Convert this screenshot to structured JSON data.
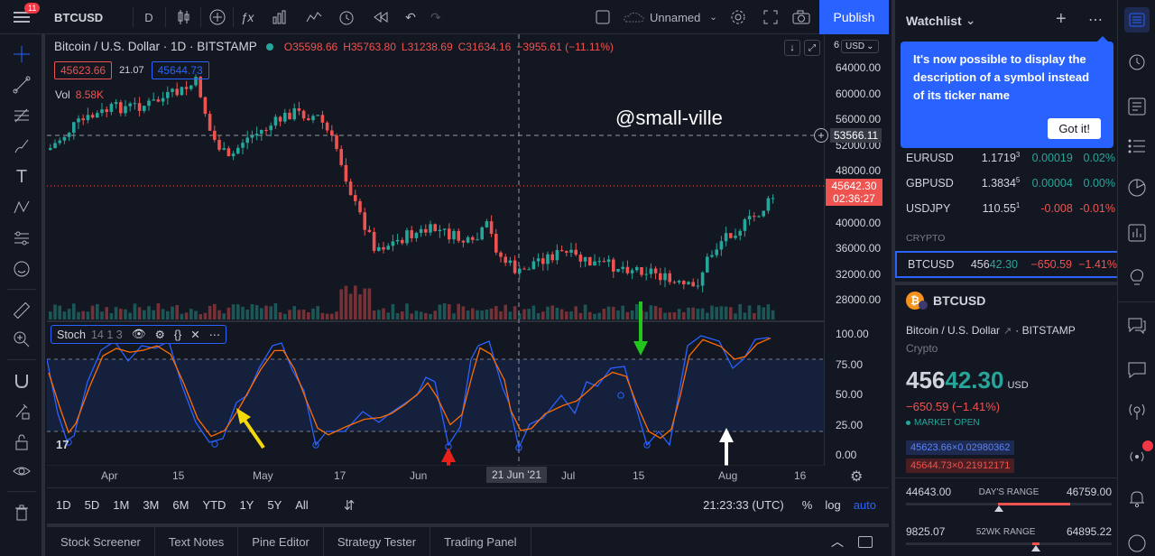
{
  "topbar": {
    "notif_count": "11",
    "symbol": "BTCUSD",
    "interval": "D",
    "layout_name": "Unnamed",
    "publish": "Publish"
  },
  "legend": {
    "title": "Bitcoin / U.S. Dollar · 1D · BITSTAMP",
    "open": "O35598.66",
    "high": "H35763.80",
    "low": "L31238.69",
    "close": "C31634.16",
    "change": "−3955.61 (−11.11%)",
    "bid": "45623.66",
    "spread": "21.07",
    "ask": "45644.73",
    "vol_label": "Vol",
    "vol_value": "8.58K",
    "watermark": "@small-ville",
    "currency": "USD"
  },
  "indicator": {
    "name": "Stoch",
    "params": "14 1 3"
  },
  "price_axis": {
    "ticks": [
      "64000.00",
      "60000.00",
      "56000.00",
      "52000.00",
      "48000.00",
      "44000.00",
      "40000.00",
      "36000.00",
      "32000.00",
      "28000.00"
    ],
    "top_label": "6",
    "crosshair_price": "53566.11",
    "last_price": "45642.30",
    "countdown": "02:36:27",
    "stoch_ticks": [
      "100.00",
      "75.00",
      "50.00",
      "25.00",
      "0.00"
    ]
  },
  "time_axis": {
    "labels": [
      "Apr",
      "15",
      "May",
      "17",
      "Jun",
      "Jul",
      "15",
      "Aug",
      "16"
    ],
    "crosshair_date": "21 Jun '21"
  },
  "ranges": {
    "items": [
      "1D",
      "5D",
      "1M",
      "3M",
      "6M",
      "YTD",
      "1Y",
      "5Y",
      "All"
    ],
    "clock": "21:23:33 (UTC)",
    "pct": "%",
    "log": "log",
    "auto": "auto"
  },
  "bottom_tabs": [
    "Stock Screener",
    "Text Notes",
    "Pine Editor",
    "Strategy Tester",
    "Trading Panel"
  ],
  "watchlist": {
    "title": "Watchlist",
    "tooltip": "It's now possible to display the description of a symbol instead of its ticker name",
    "got_it": "Got it!",
    "rows": [
      {
        "sym": "EURUSD",
        "last": "1.1719",
        "sup": "3",
        "chg": "0.00019",
        "pct": "0.02%",
        "color": "#26a69a"
      },
      {
        "sym": "GBPUSD",
        "last": "1.3834",
        "sup": "5",
        "chg": "0.00004",
        "pct": "0.00%",
        "color": "#26a69a"
      },
      {
        "sym": "USDJPY",
        "last": "110.55",
        "sup": "1",
        "chg": "-0.008",
        "pct": "-0.01%",
        "color": "#ef5350"
      }
    ],
    "section": "CRYPTO",
    "crypto_row": {
      "sym": "BTCUSD",
      "last_a": "456",
      "last_b": "42.30",
      "chg": "−650.59",
      "pct": "−1.41%"
    },
    "detail": {
      "symbol": "BTCUSD",
      "name": "Bitcoin / U.S. Dollar",
      "exchange": "· BITSTAMP",
      "type": "Crypto",
      "price_big": "456",
      "price_rest": "42.30",
      "currency": "USD",
      "change": "−650.59 (−1.41%)",
      "market": "MARKET OPEN",
      "bid": "45623.66×0.02980362",
      "ask": "45644.73×0.21912171",
      "day_low": "44643.00",
      "day_label": "DAY'S RANGE",
      "day_high": "46759.00",
      "wk_low": "9825.07",
      "wk_label": "52WK RANGE",
      "wk_high": "64895.22"
    }
  },
  "colors": {
    "bg": "#131722",
    "up": "#26a69a",
    "down": "#ef5350",
    "accent": "#2962ff",
    "stoch_k": "#2962ff",
    "stoch_d": "#ff6d00"
  }
}
